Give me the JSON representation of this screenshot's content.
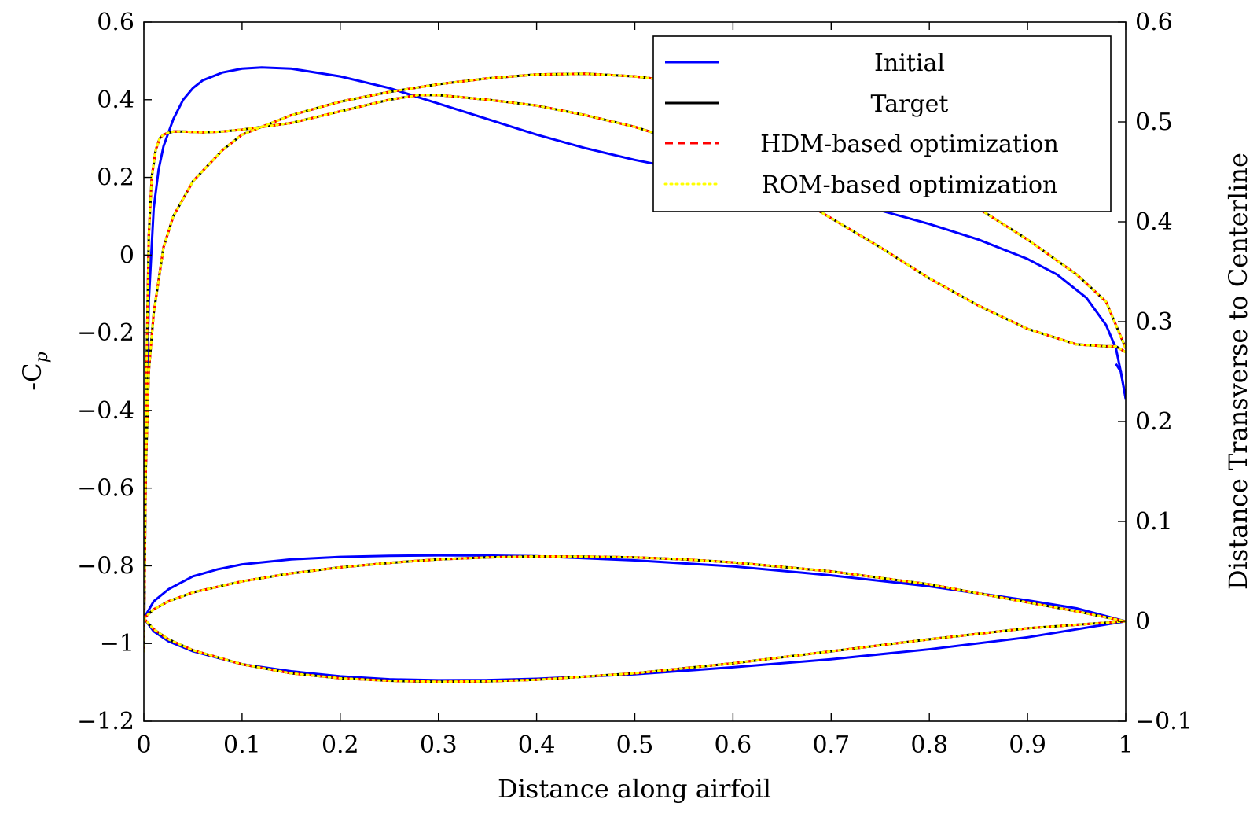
{
  "chart_data": {
    "type": "line",
    "xlabel": "Distance along airfoil",
    "ylabel_left": "-C",
    "ylabel_left_sub": "p",
    "ylabel_right": "Distance Transverse to Centerline",
    "xlim": [
      0,
      1
    ],
    "ylim_left": [
      -1.2,
      0.6
    ],
    "ylim_right": [
      -0.1,
      0.6
    ],
    "x_ticks": [
      0,
      0.1,
      0.2,
      0.3,
      0.4,
      0.5,
      0.6,
      0.7,
      0.8,
      0.9,
      1
    ],
    "x_tick_labels": [
      "0",
      "0.1",
      "0.2",
      "0.3",
      "0.4",
      "0.5",
      "0.6",
      "0.7",
      "0.8",
      "0.9",
      "1"
    ],
    "y_left_ticks": [
      -1.2,
      -1,
      -0.8,
      -0.6,
      -0.4,
      -0.2,
      0,
      0.2,
      0.4,
      0.6
    ],
    "y_left_tick_labels": [
      "−1.2",
      "−1",
      "−0.8",
      "−0.6",
      "−0.4",
      "−0.2",
      "0",
      "0.2",
      "0.4",
      "0.6"
    ],
    "y_right_ticks": [
      -0.1,
      0,
      0.1,
      0.2,
      0.3,
      0.4,
      0.5,
      0.6
    ],
    "y_right_tick_labels": [
      "−0.1",
      "0",
      "0.1",
      "0.2",
      "0.3",
      "0.4",
      "0.5",
      "0.6"
    ],
    "grid": false,
    "legend_position": "top-right",
    "legend": [
      {
        "label": "Initial",
        "color": "#0000ff",
        "style": "solid"
      },
      {
        "label": "Target",
        "color": "#000000",
        "style": "solid"
      },
      {
        "label": "HDM-based optimization",
        "color": "#ff0000",
        "style": "dashed"
      },
      {
        "label": "ROM-based optimization",
        "color": "#ffff00",
        "style": "dotted"
      }
    ],
    "series": [
      {
        "name": "Initial",
        "quantity": "pressure",
        "axis": "left",
        "color": "#0000ff",
        "style": "solid",
        "x": [
          0,
          0.002,
          0.005,
          0.01,
          0.015,
          0.02,
          0.03,
          0.04,
          0.05,
          0.06,
          0.08,
          0.1,
          0.12,
          0.15,
          0.2,
          0.25,
          0.3,
          0.35,
          0.4,
          0.45,
          0.5,
          0.55,
          0.6,
          0.65,
          0.7,
          0.75,
          0.8,
          0.85,
          0.9,
          0.93,
          0.96,
          0.98,
          0.99,
          0.995,
          1.0
        ],
        "y": [
          -1.02,
          -0.5,
          -0.12,
          0.12,
          0.22,
          0.28,
          0.35,
          0.4,
          0.43,
          0.45,
          0.47,
          0.48,
          0.483,
          0.48,
          0.46,
          0.43,
          0.39,
          0.35,
          0.31,
          0.275,
          0.245,
          0.22,
          0.195,
          0.17,
          0.145,
          0.115,
          0.08,
          0.04,
          -0.01,
          -0.05,
          -0.11,
          -0.18,
          -0.24,
          -0.3,
          -0.37
        ]
      },
      {
        "name": "Target",
        "quantity": "pressure",
        "axis": "left",
        "color": "#000000",
        "style": "solid",
        "x": [
          0,
          0.002,
          0.005,
          0.008,
          0.012,
          0.016,
          0.02,
          0.025,
          0.03,
          0.04,
          0.06,
          0.08,
          0.1,
          0.15,
          0.2,
          0.25,
          0.28,
          0.3,
          0.35,
          0.4,
          0.45,
          0.5,
          0.55,
          0.6,
          0.65,
          0.7,
          0.75,
          0.8,
          0.85,
          0.9,
          0.95,
          0.98,
          0.99,
          1.0
        ],
        "y": [
          -1.02,
          -0.4,
          0.05,
          0.2,
          0.27,
          0.3,
          0.31,
          0.315,
          0.318,
          0.318,
          0.316,
          0.318,
          0.323,
          0.34,
          0.37,
          0.4,
          0.412,
          0.412,
          0.4,
          0.385,
          0.36,
          0.33,
          0.29,
          0.24,
          0.17,
          0.095,
          0.02,
          -0.06,
          -0.13,
          -0.19,
          -0.23,
          -0.235,
          -0.235,
          -0.25
        ]
      },
      {
        "name": "HDM-based optimization",
        "quantity": "pressure",
        "axis": "left",
        "color": "#ff0000",
        "style": "dashed",
        "x": [
          0,
          0.002,
          0.005,
          0.008,
          0.012,
          0.016,
          0.02,
          0.025,
          0.03,
          0.04,
          0.06,
          0.08,
          0.1,
          0.15,
          0.2,
          0.25,
          0.28,
          0.3,
          0.35,
          0.4,
          0.45,
          0.5,
          0.55,
          0.6,
          0.65,
          0.7,
          0.75,
          0.8,
          0.85,
          0.9,
          0.95,
          0.98,
          0.99,
          1.0
        ],
        "y": [
          -1.02,
          -0.4,
          0.05,
          0.2,
          0.27,
          0.3,
          0.31,
          0.315,
          0.318,
          0.318,
          0.316,
          0.318,
          0.323,
          0.34,
          0.37,
          0.4,
          0.412,
          0.412,
          0.4,
          0.385,
          0.36,
          0.33,
          0.29,
          0.24,
          0.17,
          0.095,
          0.02,
          -0.06,
          -0.13,
          -0.19,
          -0.23,
          -0.235,
          -0.235,
          -0.25
        ]
      },
      {
        "name": "ROM-based optimization",
        "quantity": "pressure",
        "axis": "left",
        "color": "#ffff00",
        "style": "dotted",
        "x": [
          0,
          0.002,
          0.005,
          0.008,
          0.012,
          0.016,
          0.02,
          0.025,
          0.03,
          0.04,
          0.06,
          0.08,
          0.1,
          0.15,
          0.2,
          0.25,
          0.28,
          0.3,
          0.35,
          0.4,
          0.45,
          0.5,
          0.55,
          0.6,
          0.65,
          0.7,
          0.75,
          0.8,
          0.85,
          0.9,
          0.95,
          0.98,
          0.99,
          1.0
        ],
        "y": [
          -1.02,
          -0.4,
          0.05,
          0.2,
          0.27,
          0.3,
          0.31,
          0.315,
          0.318,
          0.318,
          0.316,
          0.318,
          0.323,
          0.34,
          0.37,
          0.4,
          0.412,
          0.412,
          0.4,
          0.385,
          0.36,
          0.33,
          0.29,
          0.24,
          0.17,
          0.095,
          0.02,
          -0.06,
          -0.13,
          -0.19,
          -0.23,
          -0.235,
          -0.235,
          -0.25
        ]
      },
      {
        "name": "Initial",
        "quantity": "pressure-lower",
        "axis": "left",
        "color": "#0000ff",
        "style": "solid",
        "x": [
          0.99,
          0.995,
          1.0
        ],
        "y": [
          -0.28,
          -0.3,
          -0.37
        ]
      },
      {
        "name": "Target",
        "quantity": "pressure-lower",
        "axis": "left",
        "color": "#000000",
        "style": "solid",
        "x": [
          0,
          0.002,
          0.005,
          0.01,
          0.02,
          0.03,
          0.05,
          0.08,
          0.1,
          0.15,
          0.2,
          0.25,
          0.3,
          0.35,
          0.4,
          0.45,
          0.5,
          0.55,
          0.6,
          0.65,
          0.7,
          0.75,
          0.8,
          0.85,
          0.9,
          0.95,
          0.98,
          1.0
        ],
        "y": [
          -1.02,
          -0.55,
          -0.3,
          -0.15,
          0.02,
          0.1,
          0.19,
          0.27,
          0.31,
          0.36,
          0.395,
          0.42,
          0.44,
          0.455,
          0.465,
          0.467,
          0.46,
          0.445,
          0.42,
          0.38,
          0.33,
          0.27,
          0.2,
          0.12,
          0.04,
          -0.05,
          -0.12,
          -0.24
        ]
      },
      {
        "name": "HDM-based optimization",
        "quantity": "pressure-lower",
        "axis": "left",
        "color": "#ff0000",
        "style": "dashed",
        "x": [
          0,
          0.002,
          0.005,
          0.01,
          0.02,
          0.03,
          0.05,
          0.08,
          0.1,
          0.15,
          0.2,
          0.25,
          0.3,
          0.35,
          0.4,
          0.45,
          0.5,
          0.55,
          0.6,
          0.65,
          0.7,
          0.75,
          0.8,
          0.85,
          0.9,
          0.95,
          0.98,
          1.0
        ],
        "y": [
          -1.02,
          -0.55,
          -0.3,
          -0.15,
          0.02,
          0.1,
          0.19,
          0.27,
          0.31,
          0.36,
          0.395,
          0.42,
          0.44,
          0.455,
          0.465,
          0.467,
          0.46,
          0.445,
          0.42,
          0.38,
          0.33,
          0.27,
          0.2,
          0.12,
          0.04,
          -0.05,
          -0.12,
          -0.24
        ]
      },
      {
        "name": "ROM-based optimization",
        "quantity": "pressure-lower",
        "axis": "left",
        "color": "#ffff00",
        "style": "dotted",
        "x": [
          0,
          0.002,
          0.005,
          0.01,
          0.02,
          0.03,
          0.05,
          0.08,
          0.1,
          0.15,
          0.2,
          0.25,
          0.3,
          0.35,
          0.4,
          0.45,
          0.5,
          0.55,
          0.6,
          0.65,
          0.7,
          0.75,
          0.8,
          0.85,
          0.9,
          0.95,
          0.98,
          1.0
        ],
        "y": [
          -1.02,
          -0.55,
          -0.3,
          -0.15,
          0.02,
          0.1,
          0.19,
          0.27,
          0.31,
          0.36,
          0.395,
          0.42,
          0.44,
          0.455,
          0.465,
          0.467,
          0.46,
          0.445,
          0.42,
          0.38,
          0.33,
          0.27,
          0.2,
          0.12,
          0.04,
          -0.05,
          -0.12,
          -0.24
        ]
      },
      {
        "name": "Initial",
        "quantity": "airfoil-upper",
        "axis": "right",
        "color": "#0000ff",
        "style": "solid",
        "x": [
          0,
          0.01,
          0.025,
          0.05,
          0.075,
          0.1,
          0.15,
          0.2,
          0.25,
          0.3,
          0.35,
          0.4,
          0.5,
          0.6,
          0.7,
          0.8,
          0.9,
          0.95,
          1.0
        ],
        "y": [
          0.003,
          0.02,
          0.032,
          0.045,
          0.052,
          0.057,
          0.062,
          0.0645,
          0.0655,
          0.066,
          0.0658,
          0.0652,
          0.061,
          0.055,
          0.046,
          0.035,
          0.021,
          0.013,
          0.0
        ]
      },
      {
        "name": "Initial",
        "quantity": "airfoil-lower",
        "axis": "right",
        "color": "#0000ff",
        "style": "solid",
        "x": [
          0,
          0.01,
          0.025,
          0.05,
          0.1,
          0.15,
          0.2,
          0.25,
          0.3,
          0.35,
          0.4,
          0.5,
          0.6,
          0.7,
          0.8,
          0.9,
          1.0
        ],
        "y": [
          0.003,
          -0.01,
          -0.02,
          -0.03,
          -0.043,
          -0.05,
          -0.055,
          -0.058,
          -0.059,
          -0.0588,
          -0.0575,
          -0.053,
          -0.046,
          -0.038,
          -0.028,
          -0.016,
          0.0
        ]
      },
      {
        "name": "Target",
        "quantity": "airfoil-upper",
        "axis": "right",
        "color": "#000000",
        "style": "solid",
        "x": [
          0,
          0.01,
          0.025,
          0.05,
          0.1,
          0.15,
          0.2,
          0.25,
          0.3,
          0.35,
          0.4,
          0.45,
          0.5,
          0.55,
          0.6,
          0.7,
          0.8,
          0.9,
          0.95,
          1.0
        ],
        "y": [
          0.003,
          0.012,
          0.02,
          0.029,
          0.04,
          0.048,
          0.054,
          0.0585,
          0.062,
          0.064,
          0.065,
          0.0648,
          0.064,
          0.062,
          0.059,
          0.05,
          0.037,
          0.019,
          0.01,
          0.0
        ]
      },
      {
        "name": "Target",
        "quantity": "airfoil-lower",
        "axis": "right",
        "color": "#000000",
        "style": "solid",
        "x": [
          0,
          0.01,
          0.025,
          0.05,
          0.1,
          0.15,
          0.2,
          0.25,
          0.3,
          0.35,
          0.4,
          0.5,
          0.6,
          0.7,
          0.8,
          0.9,
          1.0
        ],
        "y": [
          0.003,
          -0.008,
          -0.018,
          -0.029,
          -0.043,
          -0.052,
          -0.057,
          -0.0595,
          -0.0605,
          -0.06,
          -0.0585,
          -0.052,
          -0.042,
          -0.03,
          -0.018,
          -0.007,
          0.0
        ]
      },
      {
        "name": "HDM-based optimization",
        "quantity": "airfoil-upper",
        "axis": "right",
        "color": "#ff0000",
        "style": "dashed",
        "x": [
          0,
          0.01,
          0.025,
          0.05,
          0.1,
          0.15,
          0.2,
          0.25,
          0.3,
          0.35,
          0.4,
          0.45,
          0.5,
          0.55,
          0.6,
          0.7,
          0.8,
          0.9,
          0.95,
          1.0
        ],
        "y": [
          0.003,
          0.012,
          0.02,
          0.029,
          0.04,
          0.048,
          0.054,
          0.0585,
          0.062,
          0.064,
          0.065,
          0.0648,
          0.064,
          0.062,
          0.059,
          0.05,
          0.037,
          0.019,
          0.01,
          0.0
        ]
      },
      {
        "name": "HDM-based optimization",
        "quantity": "airfoil-lower",
        "axis": "right",
        "color": "#ff0000",
        "style": "dashed",
        "x": [
          0,
          0.01,
          0.025,
          0.05,
          0.1,
          0.15,
          0.2,
          0.25,
          0.3,
          0.35,
          0.4,
          0.5,
          0.6,
          0.7,
          0.8,
          0.9,
          1.0
        ],
        "y": [
          0.003,
          -0.008,
          -0.018,
          -0.029,
          -0.043,
          -0.052,
          -0.057,
          -0.0595,
          -0.0605,
          -0.06,
          -0.0585,
          -0.052,
          -0.042,
          -0.03,
          -0.018,
          -0.007,
          0.0
        ]
      },
      {
        "name": "ROM-based optimization",
        "quantity": "airfoil-upper",
        "axis": "right",
        "color": "#ffff00",
        "style": "dotted",
        "x": [
          0,
          0.01,
          0.025,
          0.05,
          0.1,
          0.15,
          0.2,
          0.25,
          0.3,
          0.35,
          0.4,
          0.45,
          0.5,
          0.55,
          0.6,
          0.7,
          0.8,
          0.9,
          0.95,
          1.0
        ],
        "y": [
          0.003,
          0.012,
          0.02,
          0.029,
          0.04,
          0.048,
          0.054,
          0.0585,
          0.062,
          0.064,
          0.065,
          0.0648,
          0.064,
          0.062,
          0.059,
          0.05,
          0.037,
          0.019,
          0.01,
          0.0
        ]
      },
      {
        "name": "ROM-based optimization",
        "quantity": "airfoil-lower",
        "axis": "right",
        "color": "#ffff00",
        "style": "dotted",
        "x": [
          0,
          0.01,
          0.025,
          0.05,
          0.1,
          0.15,
          0.2,
          0.25,
          0.3,
          0.35,
          0.4,
          0.5,
          0.6,
          0.7,
          0.8,
          0.9,
          1.0
        ],
        "y": [
          0.003,
          -0.008,
          -0.018,
          -0.029,
          -0.043,
          -0.052,
          -0.057,
          -0.0595,
          -0.0605,
          -0.06,
          -0.0585,
          -0.052,
          -0.042,
          -0.03,
          -0.018,
          -0.007,
          0.0
        ]
      }
    ]
  }
}
